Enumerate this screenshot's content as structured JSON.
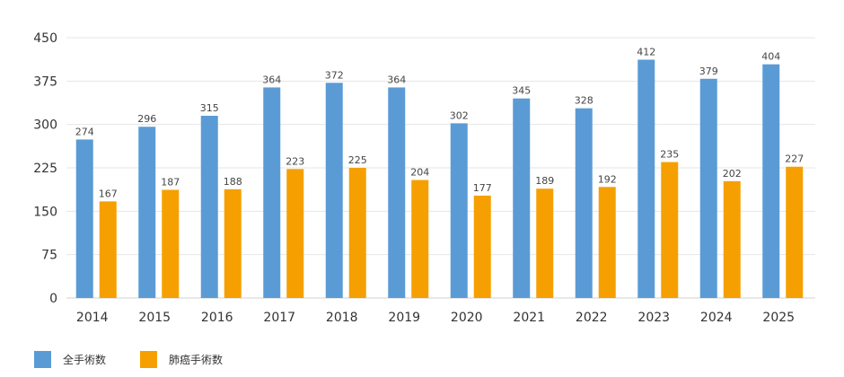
{
  "chart_data": {
    "type": "bar",
    "categories": [
      "2014",
      "2015",
      "2016",
      "2017",
      "2018",
      "2019",
      "2020",
      "2021",
      "2022",
      "2023",
      "2024",
      "2025"
    ],
    "series": [
      {
        "name": "全手術数",
        "color": "#5b9bd5",
        "values": [
          274,
          296,
          315,
          364,
          372,
          364,
          302,
          345,
          328,
          412,
          379,
          404
        ]
      },
      {
        "name": "肺癌手術数",
        "color": "#f5a000",
        "values": [
          167,
          187,
          188,
          223,
          225,
          204,
          177,
          189,
          192,
          235,
          202,
          227
        ]
      }
    ],
    "ylim": [
      0,
      450
    ],
    "yticks": [
      0,
      75,
      150,
      225,
      300,
      375,
      450
    ],
    "grid": true,
    "legend_position": "bottom-left",
    "data_labels": true
  }
}
